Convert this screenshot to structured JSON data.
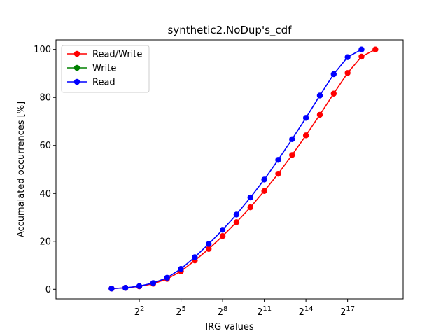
{
  "chart_data": {
    "type": "line",
    "title": "synthetic2.NoDup's_cdf",
    "xlabel": "IRG values",
    "ylabel": "Accumalated occurrences [%]",
    "x_scale": "log2",
    "xlim": [
      0.0625,
      2097152
    ],
    "ylim": [
      -4,
      104
    ],
    "x_ticks": [
      {
        "value": 4,
        "base": "2",
        "exp": "2"
      },
      {
        "value": 32,
        "base": "2",
        "exp": "5"
      },
      {
        "value": 256,
        "base": "2",
        "exp": "8"
      },
      {
        "value": 2048,
        "base": "2",
        "exp": "11"
      },
      {
        "value": 16384,
        "base": "2",
        "exp": "14"
      },
      {
        "value": 131072,
        "base": "2",
        "exp": "17"
      }
    ],
    "y_ticks": [
      0,
      20,
      40,
      60,
      80,
      100
    ],
    "y_tick_labels": [
      "0",
      "20",
      "40",
      "60",
      "80",
      "100"
    ],
    "legend_position": "top-left",
    "series": [
      {
        "name": "Read/Write",
        "color": "#ff0000",
        "x": [
          1,
          2,
          4,
          8,
          16,
          32,
          64,
          128,
          256,
          512,
          1024,
          2048,
          4096,
          8192,
          16384,
          32768,
          65536,
          131072,
          262144,
          524288
        ],
        "values": [
          0.3,
          0.6,
          1.2,
          2.3,
          4.3,
          7.5,
          12.0,
          16.8,
          22.2,
          28.0,
          34.2,
          41.0,
          48.2,
          56.0,
          64.2,
          72.8,
          81.6,
          90.2,
          97.0,
          100.0
        ]
      },
      {
        "name": "Write",
        "color": "#008000",
        "x": [],
        "values": []
      },
      {
        "name": "Read",
        "color": "#0000ff",
        "x": [
          1,
          2,
          4,
          8,
          16,
          32,
          64,
          128,
          256,
          512,
          1024,
          2048,
          4096,
          8192,
          16384,
          32768,
          65536,
          131072,
          262144
        ],
        "values": [
          0.3,
          0.6,
          1.3,
          2.6,
          4.8,
          8.5,
          13.4,
          18.9,
          24.8,
          31.2,
          38.3,
          45.8,
          54.0,
          62.6,
          71.5,
          80.8,
          89.7,
          96.8,
          100.0
        ]
      }
    ]
  }
}
